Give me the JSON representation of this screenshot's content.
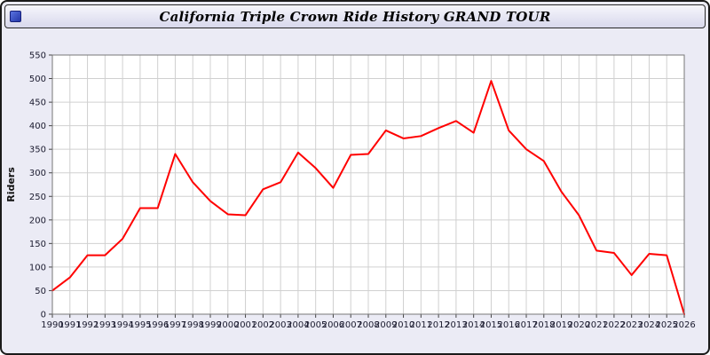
{
  "header": {
    "title": "California Triple Crown Ride History GRAND TOUR"
  },
  "colors": {
    "page_bg": "#ebebf5",
    "plot_bg": "#ffffff",
    "grid": "#d0d0d0",
    "plot_border": "#777777",
    "axis_text": "#1a1a2e",
    "line": "#ff0000",
    "icon_blue": "#2436a8"
  },
  "chart_data": {
    "type": "line",
    "title": "California Triple Crown Ride History GRAND TOUR",
    "xlabel": "",
    "ylabel": "Riders",
    "ylim": [
      0,
      550
    ],
    "yticks": [
      0,
      50,
      100,
      150,
      200,
      250,
      300,
      350,
      400,
      450,
      500,
      550
    ],
    "grid": true,
    "legend_position": "none",
    "line_color": "#ff0000",
    "categories": [
      "1990",
      "1991",
      "1992",
      "1993",
      "1994",
      "1995",
      "1996",
      "1997",
      "1998",
      "1999",
      "2000",
      "2001",
      "2002",
      "2003",
      "2004",
      "2005",
      "2006",
      "2007",
      "2008",
      "2009",
      "2010",
      "2011",
      "2012",
      "2013",
      "2014",
      "2015",
      "2016",
      "2017",
      "2018",
      "2019",
      "2020",
      "2021",
      "2022",
      "2023",
      "2024",
      "2025",
      "2026"
    ],
    "series": [
      {
        "name": "Riders",
        "values": [
          50,
          78,
          125,
          125,
          160,
          225,
          225,
          340,
          280,
          240,
          212,
          210,
          265,
          280,
          343,
          310,
          268,
          338,
          340,
          390,
          373,
          378,
          395,
          410,
          385,
          495,
          390,
          350,
          325,
          260,
          210,
          135,
          130,
          83,
          128,
          125,
          0
        ]
      }
    ]
  }
}
